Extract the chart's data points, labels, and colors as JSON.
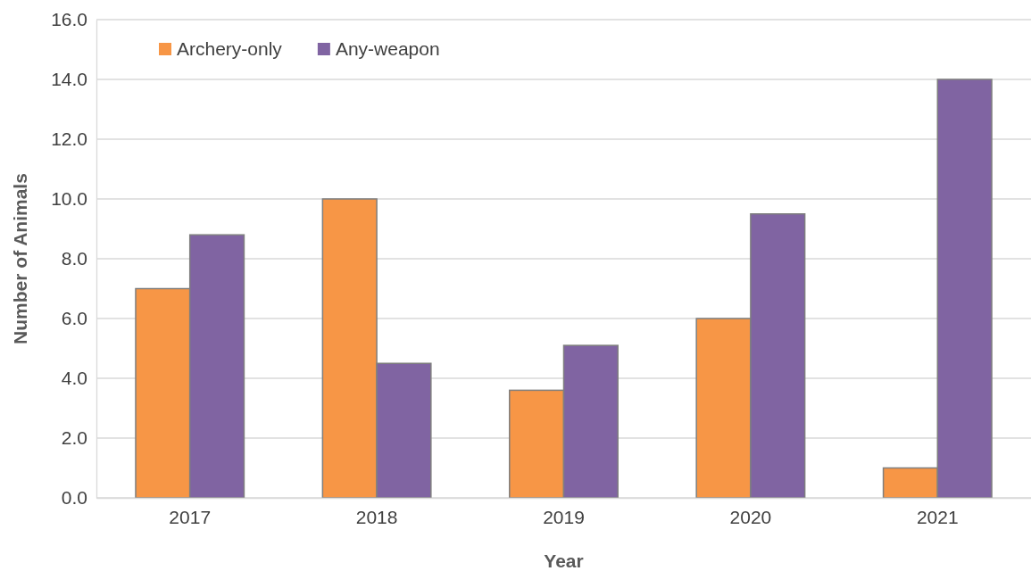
{
  "chart_data": {
    "type": "bar",
    "xlabel": "Year",
    "ylabel": "Number of Animals",
    "categories": [
      "2017",
      "2018",
      "2019",
      "2020",
      "2021"
    ],
    "series": [
      {
        "name": "Archery-only",
        "color": "#f79646",
        "values": [
          7.0,
          10.0,
          3.6,
          6.0,
          1.0
        ]
      },
      {
        "name": "Any-weapon",
        "color": "#8064a2",
        "values": [
          8.8,
          4.5,
          5.1,
          9.5,
          14.0
        ]
      }
    ],
    "ylim": [
      0,
      16
    ],
    "yticks": [
      {
        "value": 0,
        "label": "0.0"
      },
      {
        "value": 2,
        "label": "2.0"
      },
      {
        "value": 4,
        "label": "4.0"
      },
      {
        "value": 6,
        "label": "6.0"
      },
      {
        "value": 8,
        "label": "8.0"
      },
      {
        "value": 10,
        "label": "10.0"
      },
      {
        "value": 12,
        "label": "12.0"
      },
      {
        "value": 14,
        "label": "14.0"
      },
      {
        "value": 16,
        "label": "16.0"
      }
    ],
    "grid": "y",
    "legend": "top left"
  }
}
